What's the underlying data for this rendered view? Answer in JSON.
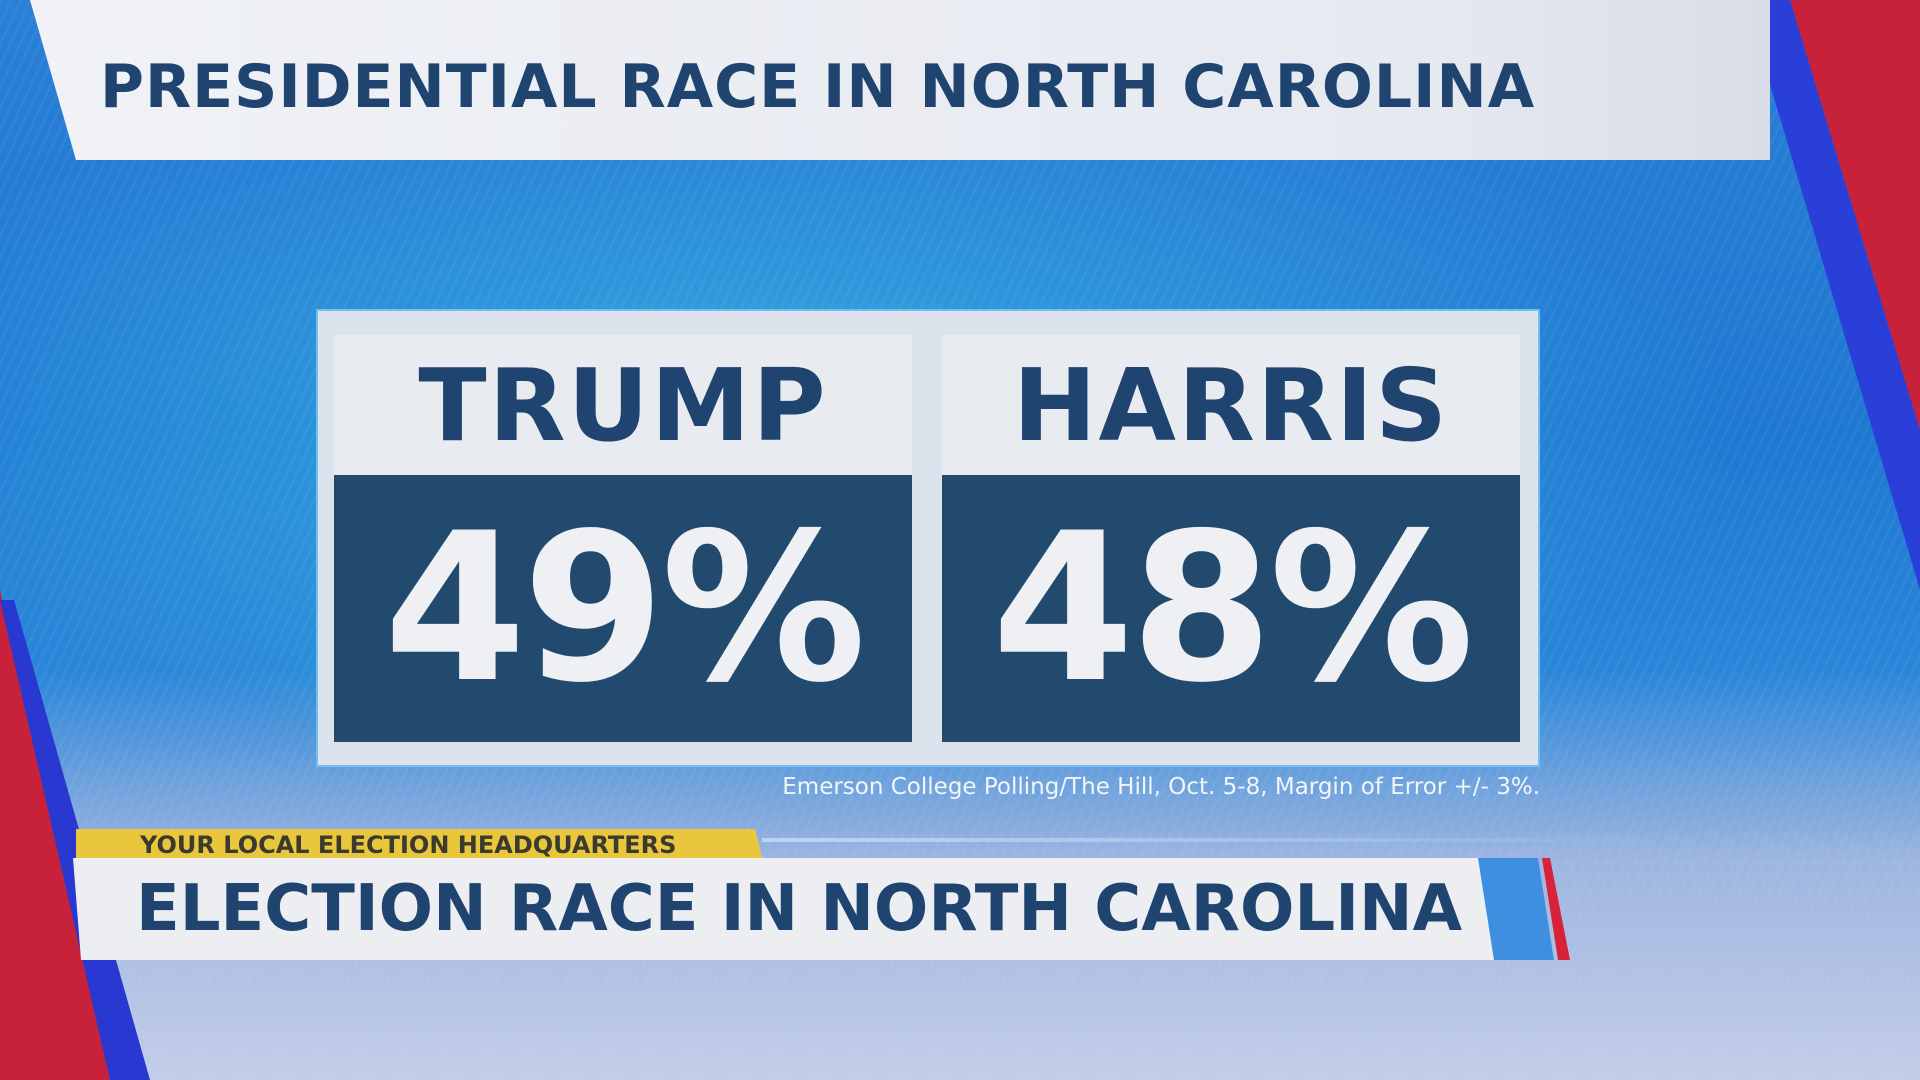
{
  "header": {
    "title": "PRESIDENTIAL RACE IN NORTH CAROLINA"
  },
  "poll": {
    "candidates": [
      {
        "name": "TRUMP",
        "value": "49%"
      },
      {
        "name": "HARRIS",
        "value": "48%"
      }
    ],
    "source": "Emerson College Polling/The Hill, Oct. 5-8, Margin of Error +/- 3%."
  },
  "lower_third": {
    "tag": "YOUR LOCAL ELECTION HEADQUARTERS",
    "headline": "ELECTION RACE IN NORTH CAROLINA"
  },
  "colors": {
    "navy": "#22496e",
    "title_text": "#1f4470",
    "tag_yellow": "#e9c73c",
    "stripe_red": "#d8223a",
    "stripe_blue": "#2a3fd8"
  }
}
